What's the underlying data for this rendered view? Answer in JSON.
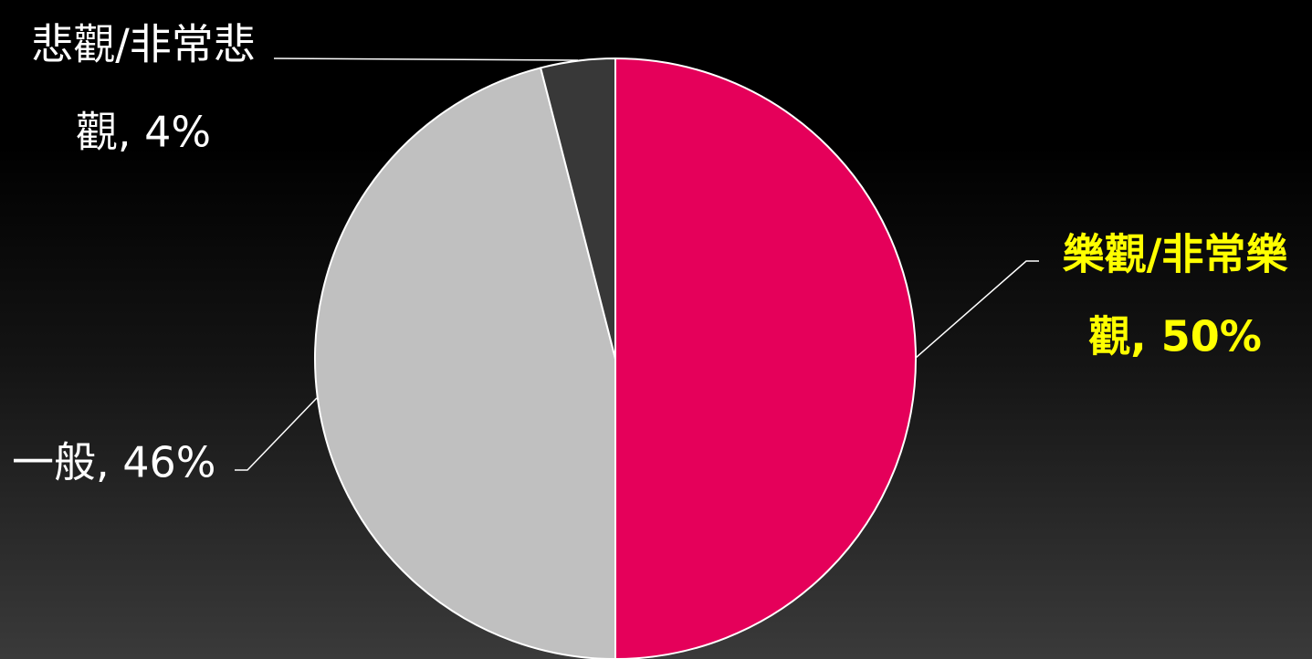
{
  "chart_data": {
    "type": "pie",
    "slices": [
      {
        "label_lines": [
          "樂觀/非常樂",
          "觀, 50%"
        ],
        "value": 50,
        "color": "#e5005a",
        "label_color": "#ffff00",
        "label_bold": true
      },
      {
        "label_lines": [
          "一般, 46%"
        ],
        "value": 46,
        "color": "#c0c0c0",
        "label_color": "#ffffff",
        "label_bold": false
      },
      {
        "label_lines": [
          "悲觀/非常悲",
          "觀, 4%"
        ],
        "value": 4,
        "color": "#383838",
        "label_color": "#ffffff",
        "label_bold": false
      }
    ],
    "start_angle": "12 o'clock",
    "direction": "clockwise",
    "legend": "none",
    "data_labels": "outside with leader lines"
  }
}
